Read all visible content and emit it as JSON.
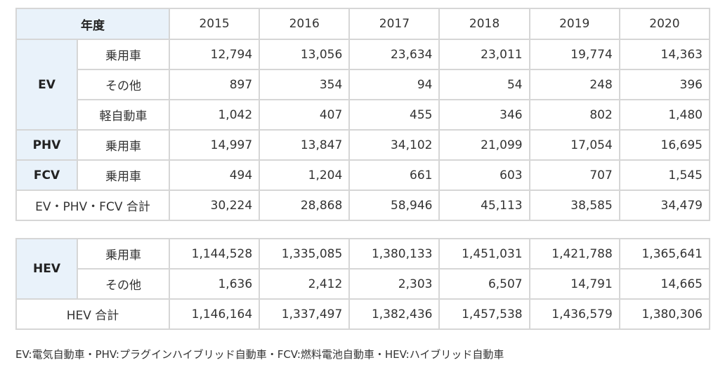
{
  "table1": {
    "header": {
      "label": "年度",
      "years": [
        "2015",
        "2016",
        "2017",
        "2018",
        "2019",
        "2020"
      ]
    },
    "groups": [
      {
        "category": "EV",
        "rows": [
          {
            "sub": "乗用車",
            "values": [
              "12,794",
              "13,056",
              "23,634",
              "23,011",
              "19,774",
              "14,363"
            ]
          },
          {
            "sub": "その他",
            "values": [
              "897",
              "354",
              "94",
              "54",
              "248",
              "396"
            ]
          },
          {
            "sub": "軽自動車",
            "values": [
              "1,042",
              "407",
              "455",
              "346",
              "802",
              "1,480"
            ]
          }
        ]
      },
      {
        "category": "PHV",
        "rows": [
          {
            "sub": "乗用車",
            "values": [
              "14,997",
              "13,847",
              "34,102",
              "21,099",
              "17,054",
              "16,695"
            ]
          }
        ]
      },
      {
        "category": "FCV",
        "rows": [
          {
            "sub": "乗用車",
            "values": [
              "494",
              "1,204",
              "661",
              "603",
              "707",
              "1,545"
            ]
          }
        ]
      }
    ],
    "total": {
      "label": "EV・PHV・FCV 合計",
      "values": [
        "30,224",
        "28,868",
        "58,946",
        "45,113",
        "38,585",
        "34,479"
      ]
    }
  },
  "table2": {
    "category": "HEV",
    "rows": [
      {
        "sub": "乗用車",
        "values": [
          "1,144,528",
          "1,335,085",
          "1,380,133",
          "1,451,031",
          "1,421,788",
          "1,365,641"
        ]
      },
      {
        "sub": "その他",
        "values": [
          "1,636",
          "2,412",
          "2,303",
          "6,507",
          "14,791",
          "14,665"
        ]
      }
    ],
    "total": {
      "label": "HEV 合計",
      "values": [
        "1,146,164",
        "1,337,497",
        "1,382,436",
        "1,457,538",
        "1,436,579",
        "1,380,306"
      ]
    }
  },
  "footnote": "EV:電気自動車・PHV:プラグインハイブリッド自動車・FCV:燃料電池自動車・HEV:ハイブリッド自動車"
}
